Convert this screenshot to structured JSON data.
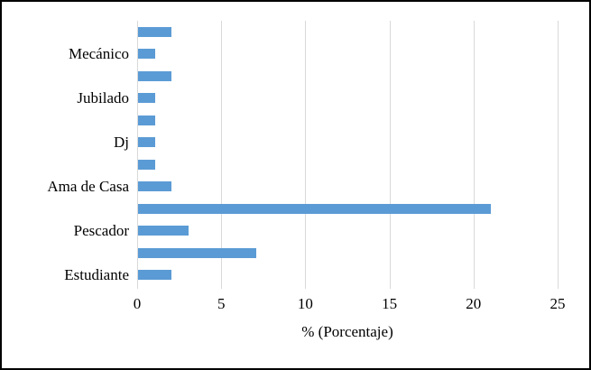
{
  "chart_data": {
    "type": "bar",
    "orientation": "horizontal",
    "title": "",
    "xlabel": "% (Porcentaje)",
    "ylabel": "",
    "xlim": [
      0,
      25
    ],
    "x_ticks": [
      0,
      5,
      10,
      15,
      20,
      25
    ],
    "grid": "vertical-gridlines-on",
    "legend": "none",
    "bars_top_to_bottom": [
      {
        "label": "",
        "value": 2
      },
      {
        "label": "Mecánico",
        "value": 1
      },
      {
        "label": "",
        "value": 2
      },
      {
        "label": "Jubilado",
        "value": 1
      },
      {
        "label": "",
        "value": 1
      },
      {
        "label": "Dj",
        "value": 1
      },
      {
        "label": "",
        "value": 1
      },
      {
        "label": "Ama de Casa",
        "value": 2
      },
      {
        "label": "",
        "value": 21
      },
      {
        "label": "Pescador",
        "value": 3
      },
      {
        "label": "",
        "value": 7
      },
      {
        "label": "Estudiante",
        "value": 2
      }
    ],
    "colors": {
      "bar": "#5B9BD5",
      "gridline": "#D9D9D9",
      "axis_line": "#D9D9D9",
      "text": "#000000",
      "frame_border": "#000000",
      "background": "#FFFFFF"
    }
  }
}
